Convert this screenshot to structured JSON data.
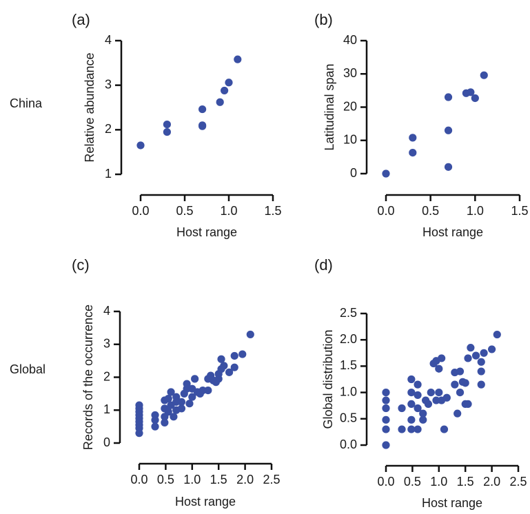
{
  "row_labels": [
    "China",
    "Global"
  ],
  "colors": {
    "point": "#3a50a4",
    "axis": "#111111",
    "text": "#1a1a1a"
  },
  "chart_data": [
    {
      "panel": "(a)",
      "type": "scatter",
      "xlabel": "Host range",
      "ylabel": "Relative abundance",
      "xlim": [
        0,
        1.5
      ],
      "ylim": [
        1,
        4
      ],
      "xticks": [
        "0.0",
        "0.5",
        "1.0",
        "1.5"
      ],
      "yticks": [
        "1",
        "2",
        "3",
        "4"
      ],
      "points": [
        [
          0,
          1.65
        ],
        [
          0.3,
          2.12
        ],
        [
          0.3,
          1.95
        ],
        [
          0.7,
          2.46
        ],
        [
          0.7,
          2.08
        ],
        [
          0.7,
          2.1
        ],
        [
          0.9,
          2.62
        ],
        [
          0.95,
          2.88
        ],
        [
          1.0,
          3.06
        ],
        [
          1.1,
          3.58
        ]
      ]
    },
    {
      "panel": "(b)",
      "type": "scatter",
      "xlabel": "Host range",
      "ylabel": "Latitudinal span",
      "xlim": [
        0,
        1.5
      ],
      "ylim": [
        0,
        40
      ],
      "xticks": [
        "0.0",
        "0.5",
        "1.0",
        "1.5"
      ],
      "yticks": [
        "0",
        "10",
        "20",
        "30",
        "40"
      ],
      "points": [
        [
          0,
          0
        ],
        [
          0.3,
          10.8
        ],
        [
          0.3,
          6.3
        ],
        [
          0.7,
          23
        ],
        [
          0.7,
          13
        ],
        [
          0.7,
          2
        ],
        [
          0.9,
          24.2
        ],
        [
          0.95,
          24.5
        ],
        [
          1.0,
          22.7
        ],
        [
          1.1,
          29.6
        ]
      ]
    },
    {
      "panel": "(c)",
      "type": "scatter",
      "xlabel": "Host range",
      "ylabel": "Records of the occurrence",
      "xlim": [
        0,
        2.5
      ],
      "ylim": [
        0,
        4
      ],
      "xticks": [
        "0.0",
        "0.5",
        "1.0",
        "1.5",
        "2.0",
        "2.5"
      ],
      "yticks": [
        "0",
        "1",
        "2",
        "3",
        "4"
      ],
      "points": [
        [
          0,
          0.3
        ],
        [
          0,
          0.45
        ],
        [
          0,
          0.55
        ],
        [
          0,
          0.65
        ],
        [
          0,
          0.75
        ],
        [
          0,
          0.85
        ],
        [
          0,
          0.95
        ],
        [
          0,
          1.05
        ],
        [
          0,
          1.15
        ],
        [
          0.3,
          0.5
        ],
        [
          0.3,
          0.7
        ],
        [
          0.3,
          0.85
        ],
        [
          0.48,
          0.62
        ],
        [
          0.48,
          0.8
        ],
        [
          0.48,
          1.05
        ],
        [
          0.48,
          1.3
        ],
        [
          0.55,
          0.95
        ],
        [
          0.55,
          1.35
        ],
        [
          0.6,
          1.15
        ],
        [
          0.6,
          1.55
        ],
        [
          0.65,
          0.8
        ],
        [
          0.7,
          1.0
        ],
        [
          0.7,
          1.25
        ],
        [
          0.7,
          1.4
        ],
        [
          0.8,
          1.05
        ],
        [
          0.8,
          1.25
        ],
        [
          0.85,
          1.5
        ],
        [
          0.9,
          1.65
        ],
        [
          0.9,
          1.8
        ],
        [
          0.95,
          1.2
        ],
        [
          1.0,
          1.4
        ],
        [
          1.0,
          1.65
        ],
        [
          1.05,
          1.95
        ],
        [
          1.1,
          1.55
        ],
        [
          1.15,
          1.5
        ],
        [
          1.2,
          1.6
        ],
        [
          1.3,
          1.6
        ],
        [
          1.3,
          1.95
        ],
        [
          1.35,
          2.05
        ],
        [
          1.4,
          1.9
        ],
        [
          1.45,
          1.85
        ],
        [
          1.5,
          1.95
        ],
        [
          1.5,
          2.1
        ],
        [
          1.55,
          2.25
        ],
        [
          1.55,
          2.55
        ],
        [
          1.6,
          2.35
        ],
        [
          1.7,
          2.15
        ],
        [
          1.8,
          2.3
        ],
        [
          1.8,
          2.65
        ],
        [
          1.95,
          2.7
        ],
        [
          2.1,
          3.3
        ]
      ]
    },
    {
      "panel": "(d)",
      "type": "scatter",
      "xlabel": "Host range",
      "ylabel": "Global distribution",
      "xlim": [
        0,
        2.5
      ],
      "ylim": [
        0,
        2.5
      ],
      "xticks": [
        "0.0",
        "0.5",
        "1.0",
        "1.5",
        "2.0",
        "2.5"
      ],
      "yticks": [
        "0.0",
        "0.5",
        "1.0",
        "1.5",
        "2.0",
        "2.5"
      ],
      "points": [
        [
          0,
          0.0
        ],
        [
          0,
          0.3
        ],
        [
          0,
          0.48
        ],
        [
          0,
          0.7
        ],
        [
          0,
          0.85
        ],
        [
          0,
          1.0
        ],
        [
          0.3,
          0.3
        ],
        [
          0.3,
          0.7
        ],
        [
          0.48,
          0.3
        ],
        [
          0.48,
          0.48
        ],
        [
          0.48,
          0.78
        ],
        [
          0.48,
          1.0
        ],
        [
          0.48,
          1.25
        ],
        [
          0.6,
          0.3
        ],
        [
          0.6,
          0.7
        ],
        [
          0.6,
          0.95
        ],
        [
          0.6,
          1.15
        ],
        [
          0.7,
          0.48
        ],
        [
          0.7,
          0.6
        ],
        [
          0.75,
          0.85
        ],
        [
          0.8,
          0.78
        ],
        [
          0.85,
          1.0
        ],
        [
          0.9,
          1.55
        ],
        [
          0.95,
          0.85
        ],
        [
          0.95,
          1.6
        ],
        [
          1.0,
          1.0
        ],
        [
          1.0,
          1.45
        ],
        [
          1.05,
          0.85
        ],
        [
          1.05,
          1.65
        ],
        [
          1.1,
          0.3
        ],
        [
          1.15,
          0.9
        ],
        [
          1.3,
          1.15
        ],
        [
          1.3,
          1.38
        ],
        [
          1.35,
          0.6
        ],
        [
          1.4,
          1.0
        ],
        [
          1.4,
          1.4
        ],
        [
          1.45,
          1.2
        ],
        [
          1.5,
          0.78
        ],
        [
          1.5,
          1.18
        ],
        [
          1.55,
          0.78
        ],
        [
          1.55,
          1.65
        ],
        [
          1.6,
          1.85
        ],
        [
          1.7,
          1.7
        ],
        [
          1.8,
          1.15
        ],
        [
          1.8,
          1.4
        ],
        [
          1.8,
          1.58
        ],
        [
          1.85,
          1.75
        ],
        [
          2.0,
          1.82
        ],
        [
          2.1,
          2.1
        ]
      ]
    }
  ]
}
